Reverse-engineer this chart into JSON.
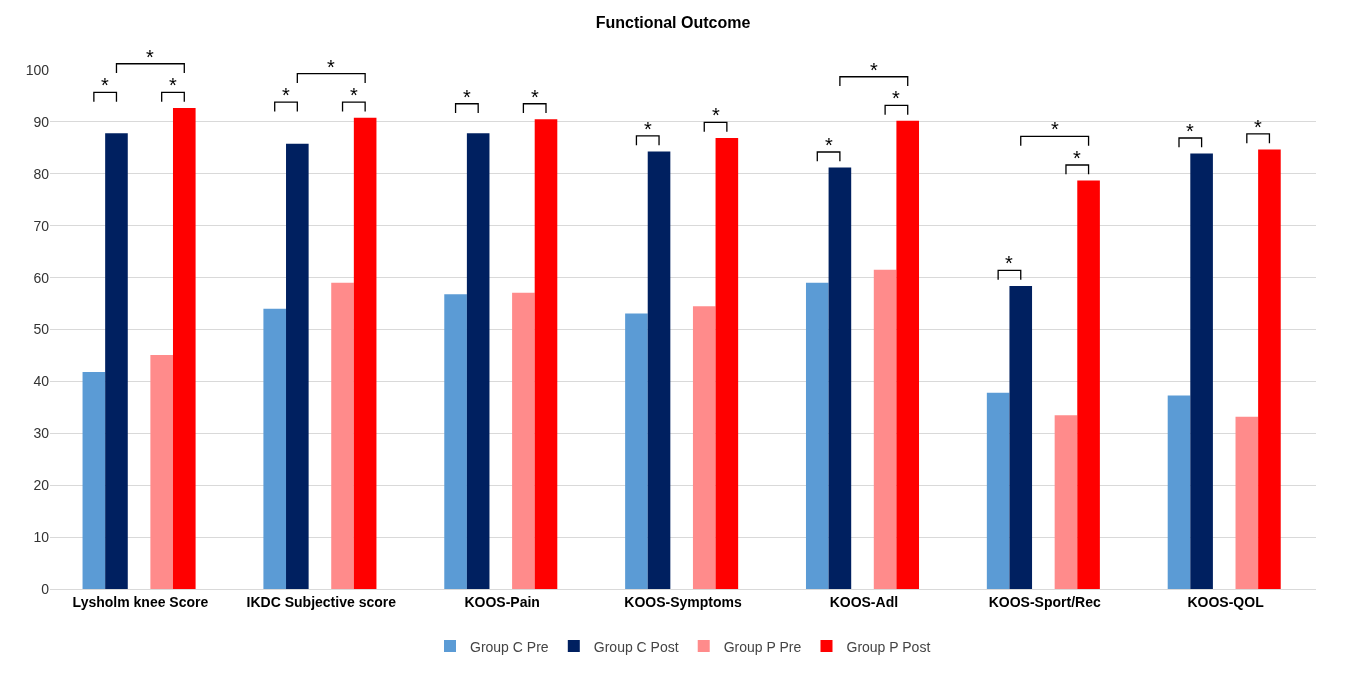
{
  "chart_data": {
    "type": "bar",
    "title": "Functional Outcome",
    "categories": [
      "Lysholm knee Score",
      "IKDC Subjective score",
      "KOOS-Pain",
      "KOOS-Symptoms",
      "KOOS-Adl",
      "KOOS-Sport/Rec",
      "KOOS-QOL"
    ],
    "series": [
      {
        "name": "Group C Pre",
        "color": "#5b9bd5",
        "values": [
          41.8,
          54,
          56.8,
          53.1,
          59,
          37.8,
          37.3
        ]
      },
      {
        "name": "Group C Post",
        "color": "#002060",
        "values": [
          87.8,
          85.8,
          87.8,
          84.3,
          81.2,
          58.4,
          83.9
        ]
      },
      {
        "name": "Group P Pre",
        "color": "#ff8b8b",
        "values": [
          45.1,
          59,
          57.1,
          54.5,
          61.5,
          33.5,
          33.2
        ]
      },
      {
        "name": "Group P Post",
        "color": "#ff0000",
        "values": [
          92.7,
          90.8,
          90.5,
          86.9,
          90.2,
          78.7,
          84.7
        ]
      }
    ],
    "ylim": [
      0,
      100
    ],
    "yticks": [
      0,
      10,
      20,
      30,
      40,
      50,
      60,
      70,
      80,
      90,
      100
    ],
    "grid": "y",
    "legend": "bottom",
    "annotations": [
      "*",
      "*",
      "*",
      "*",
      "*",
      "*",
      "*",
      "*",
      "*",
      "*",
      "*",
      "*",
      "*",
      "*",
      "*",
      "*",
      "*",
      "*"
    ]
  }
}
